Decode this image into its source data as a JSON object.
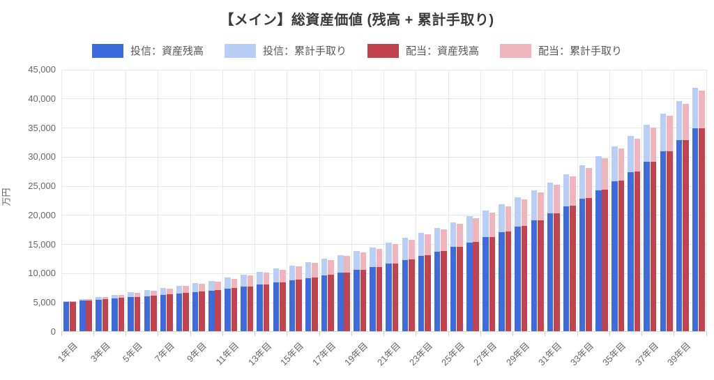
{
  "title": "【メイン】総資産価値 (残高 + 累計手取り)",
  "legend": [
    {
      "label": "投信：資産残高",
      "color": "#3d6bde"
    },
    {
      "label": "投信：累計手取り",
      "color": "#b8cef5"
    },
    {
      "label": "配当：資産残高",
      "color": "#c2434d"
    },
    {
      "label": "配当：累計手取り",
      "color": "#f0b4bd"
    }
  ],
  "y_axis": {
    "title": "万円",
    "min": 0,
    "max": 45000,
    "step": 5000,
    "tick_labels": [
      "0",
      "5,000",
      "10,000",
      "15,000",
      "20,000",
      "25,000",
      "30,000",
      "35,000",
      "40,000",
      "45,000"
    ]
  },
  "x_axis": {
    "visible_tick_labels": [
      "1年目",
      "3年目",
      "5年目",
      "7年目",
      "9年目",
      "11年目",
      "13年目",
      "15年目",
      "17年目",
      "19年目",
      "21年目",
      "23年目",
      "25年目",
      "27年目",
      "29年目",
      "31年目",
      "33年目",
      "35年目",
      "37年目",
      "39年目"
    ]
  },
  "chart_data": {
    "type": "bar",
    "stacked": true,
    "title": "【メイン】総資産価値 (残高 + 累計手取り)",
    "ylabel": "万円",
    "ylim": [
      0,
      45000
    ],
    "grid": true,
    "legend_position": "top",
    "categories": [
      "1年目",
      "2年目",
      "3年目",
      "4年目",
      "5年目",
      "6年目",
      "7年目",
      "8年目",
      "9年目",
      "10年目",
      "11年目",
      "12年目",
      "13年目",
      "14年目",
      "15年目",
      "16年目",
      "17年目",
      "18年目",
      "19年目",
      "20年目",
      "21年目",
      "22年目",
      "23年目",
      "24年目",
      "25年目",
      "26年目",
      "27年目",
      "28年目",
      "29年目",
      "30年目",
      "31年目",
      "32年目",
      "33年目",
      "34年目",
      "35年目",
      "36年目",
      "37年目",
      "38年目",
      "39年目",
      "40年目"
    ],
    "series": [
      {
        "name": "投信：資産残高",
        "stack": "toushin",
        "color": "#3d6bde",
        "values": [
          5150,
          5340,
          5530,
          5730,
          5930,
          6150,
          6370,
          6600,
          6830,
          7080,
          7410,
          7750,
          8100,
          8470,
          8860,
          9270,
          9690,
          10140,
          10600,
          11090,
          11710,
          12360,
          13060,
          13780,
          14550,
          15370,
          16230,
          17130,
          18090,
          19110,
          20300,
          21570,
          22910,
          24340,
          25850,
          27460,
          29180,
          30990,
          32930,
          34990
        ]
      },
      {
        "name": "投信：累計手取り",
        "stack": "toushin",
        "color": "#b8cef5",
        "values": [
          150,
          322,
          494,
          666,
          838,
          1010,
          1182,
          1354,
          1526,
          1698,
          1870,
          2042,
          2214,
          2386,
          2558,
          2730,
          2902,
          3074,
          3246,
          3418,
          3590,
          3762,
          3934,
          4106,
          4278,
          4450,
          4622,
          4794,
          4966,
          5138,
          5310,
          5482,
          5654,
          5826,
          5998,
          6170,
          6342,
          6514,
          6686,
          6858
        ]
      },
      {
        "name": "配当：資産残高",
        "stack": "haitou",
        "color": "#c2434d",
        "values": [
          5150,
          5420,
          5610,
          5810,
          6010,
          6230,
          6450,
          6680,
          6910,
          7160,
          7490,
          7830,
          8180,
          8550,
          8940,
          9350,
          9770,
          10220,
          10680,
          11170,
          11790,
          12440,
          13140,
          13860,
          14630,
          15450,
          16310,
          17210,
          18170,
          19190,
          20380,
          21650,
          22990,
          24420,
          25930,
          27540,
          29240,
          31030,
          32950,
          34990
        ]
      },
      {
        "name": "配当：累計手取り",
        "stack": "haitou",
        "color": "#f0b4bd",
        "values": [
          138,
          218,
          378,
          538,
          698,
          858,
          1018,
          1178,
          1338,
          1498,
          1658,
          1818,
          1978,
          2138,
          2298,
          2458,
          2618,
          2778,
          2938,
          3098,
          3258,
          3418,
          3578,
          3738,
          3898,
          4058,
          4218,
          4378,
          4538,
          4698,
          4858,
          5018,
          5178,
          5338,
          5498,
          5658,
          5838,
          6018,
          6198,
          6378
        ]
      }
    ]
  }
}
